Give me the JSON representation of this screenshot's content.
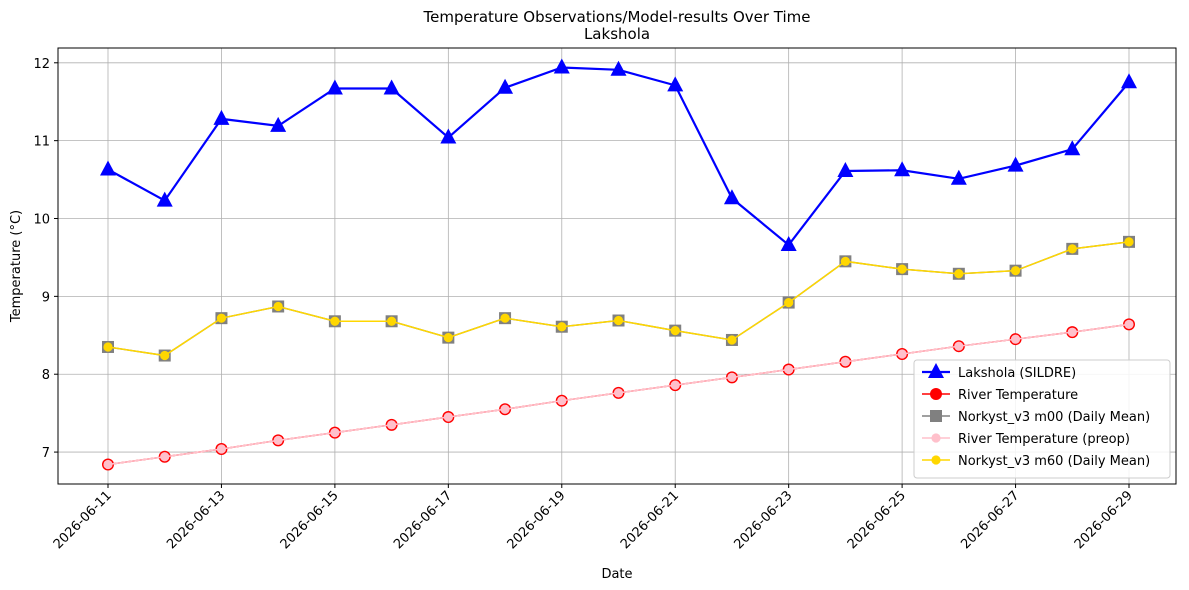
{
  "chart_data": {
    "type": "line",
    "title": "Temperature Observations/Model-results Over Time",
    "subtitle": "Lakshola",
    "x_label": "Date",
    "y_label": "Temperature (°C)",
    "x": [
      "2026-06-11",
      "2026-06-12",
      "2026-06-13",
      "2026-06-14",
      "2026-06-15",
      "2026-06-16",
      "2026-06-17",
      "2026-06-18",
      "2026-06-19",
      "2026-06-20",
      "2026-06-21",
      "2026-06-22",
      "2026-06-23",
      "2026-06-24",
      "2026-06-25",
      "2026-06-26",
      "2026-06-27",
      "2026-06-28",
      "2026-06-29"
    ],
    "xticks": [
      "2026-06-11",
      "2026-06-13",
      "2026-06-15",
      "2026-06-17",
      "2026-06-19",
      "2026-06-21",
      "2026-06-23",
      "2026-06-25",
      "2026-06-27",
      "2026-06-29"
    ],
    "ylim": [
      6.59,
      12.19
    ],
    "yticks": [
      7,
      8,
      9,
      10,
      11,
      12
    ],
    "grid": true,
    "legend": "lower right",
    "series": [
      {
        "name": "Lakshola (SILDRE)",
        "color": "#0000ff",
        "marker": "triangle",
        "values": [
          10.63,
          10.23,
          11.28,
          11.19,
          11.67,
          11.67,
          11.04,
          11.68,
          11.94,
          11.91,
          11.71,
          10.26,
          9.66,
          10.61,
          10.62,
          10.51,
          10.68,
          10.89,
          11.75
        ]
      },
      {
        "name": "River Temperature",
        "color": "#ff0000",
        "marker": "circle",
        "values": [
          6.84,
          6.94,
          7.04,
          7.15,
          7.25,
          7.35,
          7.45,
          7.55,
          7.66,
          7.76,
          7.86,
          7.96,
          8.06,
          8.16,
          8.26,
          8.36,
          8.45,
          8.54,
          8.64
        ]
      },
      {
        "name": "Norkyst_v3 m00 (Daily Mean)",
        "color": "#808080",
        "marker": "square",
        "values": [
          8.35,
          8.24,
          8.72,
          8.87,
          8.68,
          8.68,
          8.47,
          8.72,
          8.61,
          8.69,
          8.56,
          8.44,
          8.92,
          9.45,
          9.35,
          9.29,
          9.33,
          9.61,
          9.7
        ]
      },
      {
        "name": "River Temperature (preop)",
        "color": "#ffc0cb",
        "marker": "small-circle",
        "values": [
          6.84,
          6.94,
          7.04,
          7.15,
          7.25,
          7.35,
          7.45,
          7.55,
          7.66,
          7.76,
          7.86,
          7.96,
          8.06,
          8.16,
          8.26,
          8.36,
          8.45,
          8.54,
          8.64
        ]
      },
      {
        "name": "Norkyst_v3 m60 (Daily Mean)",
        "color": "#ffd700",
        "marker": "small-circle",
        "values": [
          8.35,
          8.24,
          8.72,
          8.87,
          8.68,
          8.68,
          8.47,
          8.72,
          8.61,
          8.69,
          8.56,
          8.44,
          8.92,
          9.45,
          9.35,
          9.29,
          9.33,
          9.61,
          9.7
        ]
      }
    ]
  }
}
